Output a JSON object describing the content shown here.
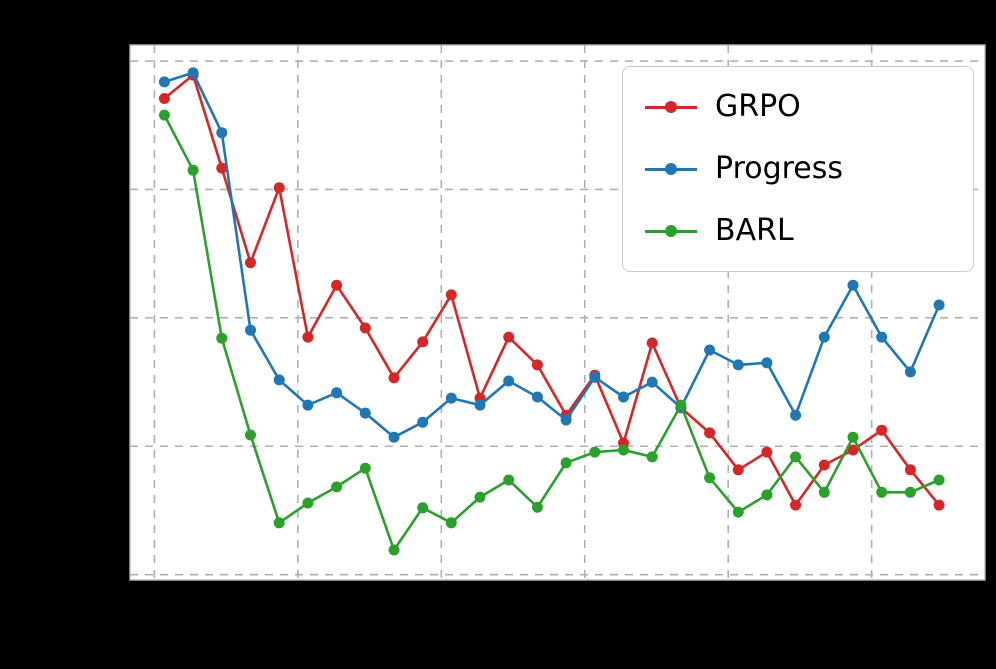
{
  "figure": {
    "background": "#000000",
    "plot_background": "#ffffff"
  },
  "chart_data": {
    "type": "line",
    "title": "",
    "xlabel": "",
    "ylabel": "",
    "grid": "dashed",
    "grid_color": "#b0b0b0",
    "spine_color": "#b9b9b9",
    "legend_position": "upper right",
    "xlim": [
      -0.2,
      29.6
    ],
    "ylim": [
      0,
      1
    ],
    "x_gridlines": [
      0.65,
      5.65,
      10.65,
      15.65,
      20.65,
      25.65
    ],
    "y_gridlines": [
      0.01,
      0.25,
      0.49,
      0.73,
      0.97
    ],
    "x": [
      1,
      2,
      3,
      4,
      5,
      6,
      7,
      8,
      9,
      10,
      11,
      12,
      13,
      14,
      15,
      16,
      17,
      18,
      19,
      20,
      21,
      22,
      23,
      24,
      25,
      26,
      27,
      28
    ],
    "series": [
      {
        "name": "GRPO",
        "color": "#d62728",
        "values": [
          0.9,
          0.944,
          0.77,
          0.593,
          0.733,
          0.454,
          0.551,
          0.471,
          0.378,
          0.445,
          0.533,
          0.34,
          0.454,
          0.402,
          0.308,
          0.383,
          0.256,
          0.443,
          0.322,
          0.275,
          0.206,
          0.239,
          0.14,
          0.215,
          0.243,
          0.28,
          0.206,
          0.14
        ]
      },
      {
        "name": "Progress",
        "color": "#1f77b4",
        "values": [
          0.931,
          0.948,
          0.836,
          0.467,
          0.374,
          0.327,
          0.35,
          0.312,
          0.267,
          0.295,
          0.34,
          0.327,
          0.372,
          0.342,
          0.299,
          0.379,
          0.342,
          0.37,
          0.322,
          0.43,
          0.402,
          0.406,
          0.308,
          0.454,
          0.551,
          0.454,
          0.389,
          0.514
        ]
      },
      {
        "name": "BARL",
        "color": "#2ca02c",
        "values": [
          0.869,
          0.766,
          0.452,
          0.271,
          0.107,
          0.144,
          0.174,
          0.209,
          0.056,
          0.135,
          0.107,
          0.155,
          0.187,
          0.136,
          0.219,
          0.239,
          0.243,
          0.23,
          0.327,
          0.191,
          0.127,
          0.159,
          0.23,
          0.164,
          0.267,
          0.164,
          0.164,
          0.187
        ]
      }
    ]
  }
}
